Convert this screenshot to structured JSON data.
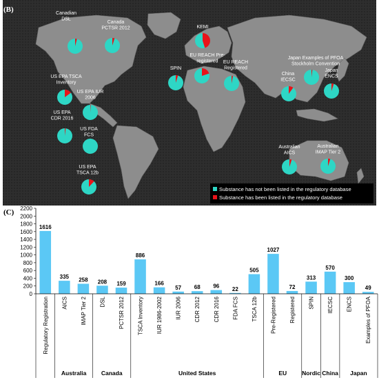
{
  "panel_b": {
    "tag": "(B)",
    "colors": {
      "background": "#2c2c2c",
      "land": "#8c8c8c",
      "not_listed": "#2ed6c5",
      "listed": "#e8141b"
    },
    "pies": [
      {
        "id": "canadian-dsl",
        "label": [
          "Canadian",
          "DSL"
        ],
        "listed_fraction": 0.04
      },
      {
        "id": "canada-pctsr",
        "label": [
          "Canada",
          "PCTSR 2012"
        ],
        "listed_fraction": 0.05
      },
      {
        "id": "kemi",
        "label": [
          "KEMI"
        ],
        "listed_fraction": 0.45
      },
      {
        "id": "eu-reach-pre",
        "label": [
          "EU REACH Pre-",
          "registered"
        ],
        "listed_fraction": 0.2
      },
      {
        "id": "eu-reach-reg",
        "label": [
          "EU REACH",
          "Registered"
        ],
        "listed_fraction": 0.03
      },
      {
        "id": "spin",
        "label": [
          "SPIN"
        ],
        "listed_fraction": 0.05
      },
      {
        "id": "japan-pfoa",
        "label": [
          "Japan Examples of PFOA",
          "Stockholm Convention"
        ],
        "listed_fraction": 0.02
      },
      {
        "id": "china-iecsc",
        "label": [
          "China",
          "IECSC"
        ],
        "listed_fraction": 0.1
      },
      {
        "id": "japan-encs",
        "label": [
          "Japan",
          "ENCS"
        ],
        "listed_fraction": 0.05
      },
      {
        "id": "us-tsca-inv",
        "label": [
          "US EPA TSCA",
          "Inventory"
        ],
        "listed_fraction": 0.15
      },
      {
        "id": "us-iur-2006",
        "label": [
          "US EPA IUR",
          "2006"
        ],
        "listed_fraction": 0.01
      },
      {
        "id": "us-cdr-2016",
        "label": [
          "US EPA",
          "CDR 2016"
        ],
        "listed_fraction": 0.02
      },
      {
        "id": "us-fda-fcs",
        "label": [
          "US FDA",
          "FCS"
        ],
        "listed_fraction": 0.0
      },
      {
        "id": "us-tsca-12b",
        "label": [
          "US EPA",
          "TSCA 12b"
        ],
        "listed_fraction": 0.12
      },
      {
        "id": "au-aics",
        "label": [
          "Australian",
          "AICS"
        ],
        "listed_fraction": 0.05
      },
      {
        "id": "au-imap",
        "label": [
          "Australian",
          "IMAP Tier 2"
        ],
        "listed_fraction": 0.05
      }
    ],
    "legend": [
      {
        "text": "Substance has not been listed in the regulatory database",
        "color": "#2ed6c5"
      },
      {
        "text": "Substance has been listed in the regulatory database",
        "color": "#e8141b"
      }
    ]
  },
  "panel_c": {
    "tag": "(C)",
    "bar_color": "#5bc8f5"
  },
  "chart_data": {
    "type": "bar",
    "categories": [
      "Regulatory Registration",
      "AICS",
      "IMAP Tier 2",
      "DSL",
      "PCTSR 2012",
      "TSCA Inventory",
      "IUR 1986-2002",
      "IUR 2006",
      "CDR 2012",
      "CDR 2016",
      "FDA FCS",
      "TSCA 12b",
      "Pre-Registered",
      "Registered",
      "SPIN",
      "IECSC",
      "ENCS",
      "Examples of PFOA"
    ],
    "values": [
      1616,
      335,
      258,
      208,
      159,
      886,
      166,
      57,
      68,
      96,
      22,
      505,
      1027,
      72,
      313,
      570,
      300,
      49
    ],
    "ylim": [
      0,
      2200
    ],
    "yticks": [
      0,
      200,
      400,
      600,
      800,
      1000,
      1200,
      1400,
      1600,
      1800,
      2000,
      2200
    ],
    "ytick_labels": [
      "0",
      "200",
      "400",
      "600",
      "800",
      "1000",
      "1200",
      "1400",
      "1600",
      "1800",
      "2000",
      "2200"
    ],
    "groups": [
      {
        "name": "Australia",
        "start": 1,
        "end": 2
      },
      {
        "name": "Canada",
        "start": 3,
        "end": 4
      },
      {
        "name": "United States",
        "start": 5,
        "end": 11
      },
      {
        "name": "EU",
        "start": 12,
        "end": 13
      },
      {
        "name": "Nordic",
        "start": 14,
        "end": 14
      },
      {
        "name": "China",
        "start": 15,
        "end": 15
      },
      {
        "name": "Japan",
        "start": 16,
        "end": 17
      }
    ]
  }
}
